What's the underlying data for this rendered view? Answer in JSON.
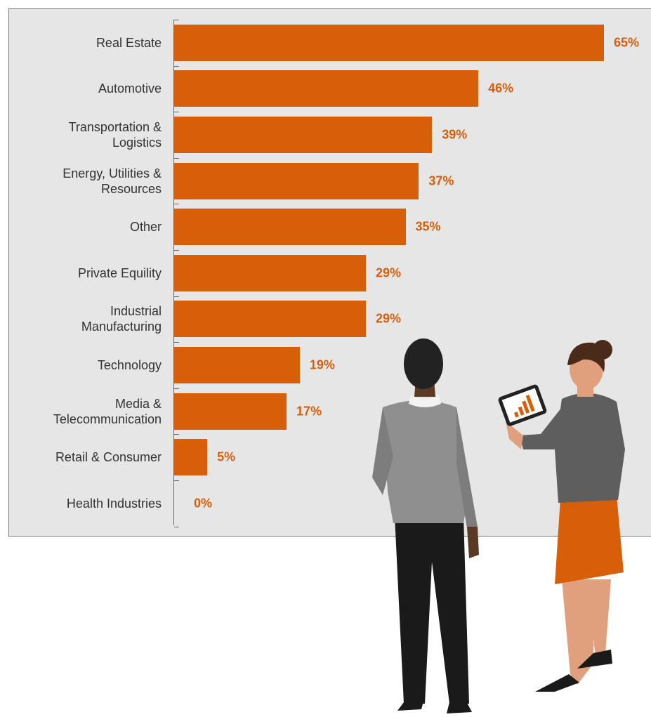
{
  "chart_data": {
    "type": "bar",
    "orientation": "horizontal",
    "color": "#d85f0a",
    "categories": [
      "Real Estate",
      "Automotive",
      "Transportation & Logistics",
      "Energy, Utilities & Resources",
      "Other",
      "Private Equility",
      "Industrial Manufacturing",
      "Technology",
      "Media & Telecommunication",
      "Retail & Consumer",
      "Health Industries"
    ],
    "values": [
      65,
      46,
      39,
      37,
      35,
      29,
      29,
      19,
      17,
      5,
      0
    ],
    "value_labels": [
      "65%",
      "46%",
      "39%",
      "37%",
      "35%",
      "29%",
      "29%",
      "19%",
      "17%",
      "5%",
      "0%"
    ]
  }
}
